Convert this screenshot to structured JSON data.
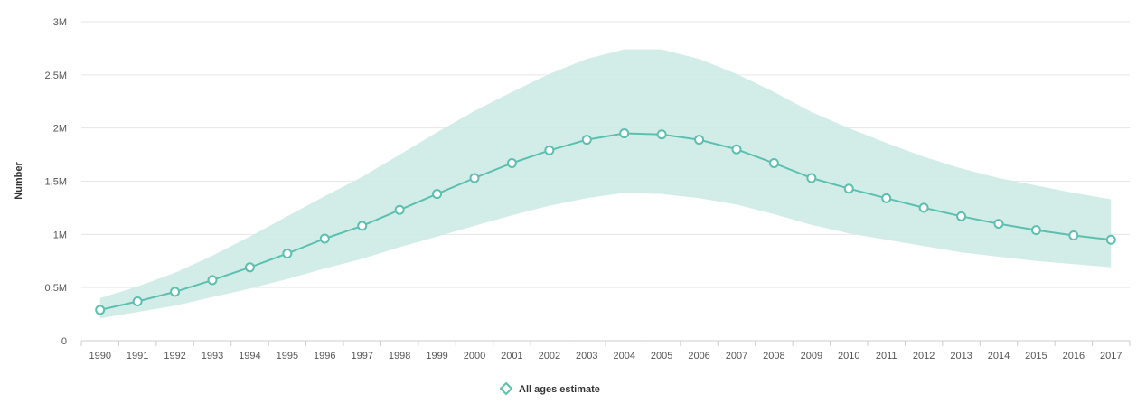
{
  "chart_data": {
    "type": "line",
    "ylabel": "Number",
    "xlabel": "",
    "ylim": [
      0,
      3000000
    ],
    "y_ticks": [
      {
        "value": 0,
        "label": "0"
      },
      {
        "value": 500000,
        "label": "0.5M"
      },
      {
        "value": 1000000,
        "label": "1M"
      },
      {
        "value": 1500000,
        "label": "1.5M"
      },
      {
        "value": 2000000,
        "label": "2M"
      },
      {
        "value": 2500000,
        "label": "2.5M"
      },
      {
        "value": 3000000,
        "label": "3M"
      }
    ],
    "grid": true,
    "legend_position": "bottom-center",
    "colors": {
      "line": "#5cbfb0",
      "band": "#cdebe6",
      "grid": "#e6e6e6",
      "axis": "#cccccc"
    },
    "x": [
      "1990",
      "1991",
      "1992",
      "1993",
      "1994",
      "1995",
      "1996",
      "1997",
      "1998",
      "1999",
      "2000",
      "2001",
      "2002",
      "2003",
      "2004",
      "2005",
      "2006",
      "2007",
      "2008",
      "2009",
      "2010",
      "2011",
      "2012",
      "2013",
      "2014",
      "2015",
      "2016",
      "2017"
    ],
    "series": [
      {
        "name": "All ages estimate",
        "values": [
          290000,
          370000,
          460000,
          570000,
          690000,
          820000,
          960000,
          1080000,
          1230000,
          1380000,
          1530000,
          1670000,
          1790000,
          1890000,
          1950000,
          1940000,
          1890000,
          1800000,
          1670000,
          1530000,
          1430000,
          1340000,
          1250000,
          1170000,
          1100000,
          1040000,
          990000,
          950000
        ],
        "lower": [
          210000,
          270000,
          330000,
          410000,
          490000,
          580000,
          680000,
          770000,
          880000,
          980000,
          1080000,
          1180000,
          1270000,
          1340000,
          1390000,
          1380000,
          1340000,
          1280000,
          1190000,
          1090000,
          1010000,
          950000,
          890000,
          830000,
          790000,
          750000,
          720000,
          690000
        ],
        "upper": [
          400000,
          510000,
          640000,
          800000,
          980000,
          1170000,
          1360000,
          1540000,
          1750000,
          1960000,
          2160000,
          2340000,
          2510000,
          2650000,
          2740000,
          2740000,
          2650000,
          2510000,
          2340000,
          2150000,
          2000000,
          1860000,
          1730000,
          1620000,
          1530000,
          1460000,
          1390000,
          1330000
        ]
      }
    ]
  }
}
